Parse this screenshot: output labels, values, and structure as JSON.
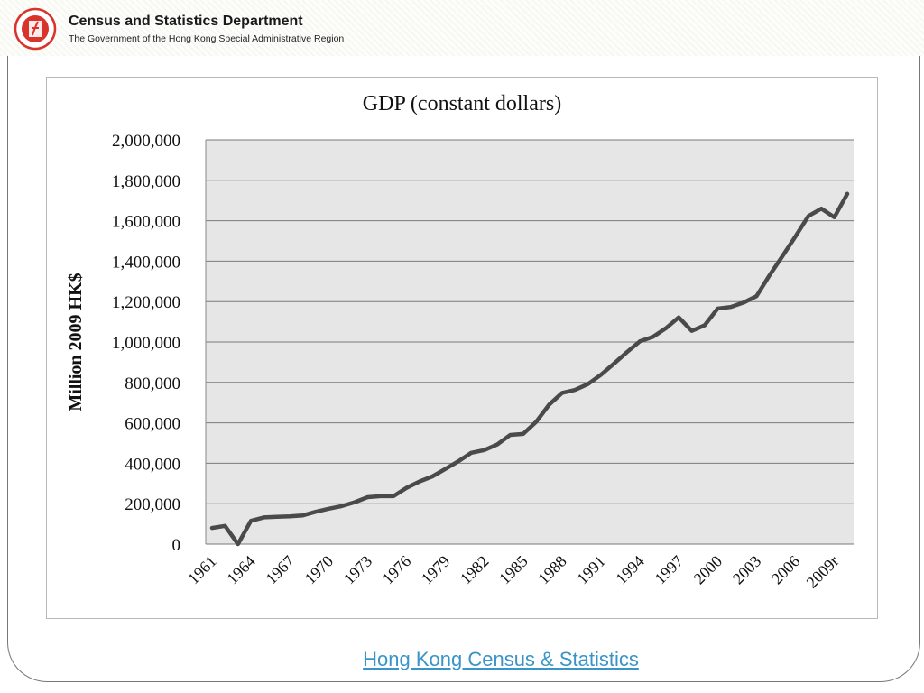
{
  "header": {
    "title": "Census and Statistics Department",
    "subtitle": "The Government of the Hong Kong Special Administrative Region"
  },
  "footer": {
    "link_text": "Hong Kong Census & Statistics"
  },
  "colors": {
    "line": "#4a4a4a",
    "plot_bg": "#e6e6e6",
    "grid": "#7a7a7a",
    "link": "#3a94c8",
    "logo": "#d9342b"
  },
  "chart_data": {
    "type": "line",
    "title": "GDP (constant dollars)",
    "xlabel": "",
    "ylabel": "Million 2009 HK$",
    "ylim": [
      0,
      2000000
    ],
    "yticks": [
      0,
      200000,
      400000,
      600000,
      800000,
      1000000,
      1200000,
      1400000,
      1600000,
      1800000,
      2000000
    ],
    "ytick_labels": [
      "0",
      "200,000",
      "400,000",
      "600,000",
      "800,000",
      "1,000,000",
      "1,200,000",
      "1,400,000",
      "1,600,000",
      "1,800,000",
      "2,000,000"
    ],
    "xtick_labels": [
      "1961",
      "1964",
      "1967",
      "1970",
      "1973",
      "1976",
      "1979",
      "1982",
      "1985",
      "1988",
      "1991",
      "1994",
      "1997",
      "2000",
      "2003",
      "2006",
      "2009r"
    ],
    "grid": true,
    "legend": "none",
    "x": [
      1961,
      1962,
      1963,
      1964,
      1965,
      1966,
      1967,
      1968,
      1969,
      1970,
      1971,
      1972,
      1973,
      1974,
      1975,
      1976,
      1977,
      1978,
      1979,
      1980,
      1981,
      1982,
      1983,
      1984,
      1985,
      1986,
      1987,
      1988,
      1989,
      1990,
      1991,
      1992,
      1993,
      1994,
      1995,
      1996,
      1997,
      1998,
      1999,
      2000,
      2001,
      2002,
      2003,
      2004,
      2005,
      2006,
      2007,
      2008,
      2009,
      2010
    ],
    "series": [
      {
        "values": [
          80000,
          90000,
          0,
          115000,
          132000,
          135000,
          137000,
          142000,
          160000,
          175000,
          188000,
          207000,
          232000,
          237000,
          237000,
          278000,
          310000,
          335000,
          372000,
          410000,
          452000,
          465000,
          493000,
          540000,
          545000,
          605000,
          690000,
          748000,
          763000,
          792000,
          838000,
          893000,
          950000,
          1003000,
          1025000,
          1068000,
          1122000,
          1055000,
          1083000,
          1165000,
          1173000,
          1195000,
          1227000,
          1330000,
          1425000,
          1522000,
          1623000,
          1660000,
          1617000,
          1733000
        ]
      }
    ]
  }
}
